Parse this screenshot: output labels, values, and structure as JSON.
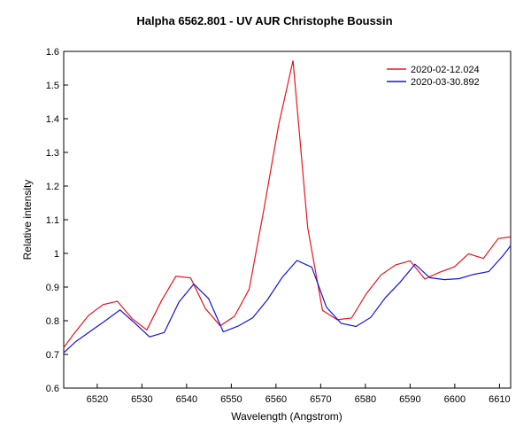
{
  "chart_data": {
    "type": "line",
    "title": "Halpha 6562.801 - UV AUR   Christophe Boussin",
    "xlabel": "Wavelength (Angstrom)",
    "ylabel": "Relative intensity",
    "xlim": [
      6512.5,
      6612.5
    ],
    "ylim": [
      0.6,
      1.6
    ],
    "xticks": [
      "6520",
      "6530",
      "6540",
      "6550",
      "6560",
      "6570",
      "6580",
      "6590",
      "6600",
      "6610"
    ],
    "yticks": [
      "0.6",
      "0.7",
      "0.8",
      "0.9",
      "1",
      "1.1",
      "1.2",
      "1.3",
      "1.4",
      "1.5",
      "1.6"
    ],
    "legend_position": "top-right",
    "grid": false,
    "series": [
      {
        "name": "2020-02-12.024",
        "color": "#e8141c",
        "x": [
          6512.5,
          6514.7,
          6518.0,
          6521.3,
          6524.5,
          6527.8,
          6531.1,
          6534.4,
          6537.6,
          6540.9,
          6544.2,
          6547.5,
          6550.7,
          6554.0,
          6557.3,
          6560.6,
          6563.8,
          6567.1,
          6570.4,
          6573.7,
          6576.9,
          6580.2,
          6583.5,
          6586.8,
          6590.0,
          6593.3,
          6596.6,
          6599.9,
          6603.1,
          6606.4,
          6609.7,
          6612.5
        ],
        "y": [
          0.72,
          0.76,
          0.815,
          0.848,
          0.858,
          0.806,
          0.773,
          0.86,
          0.932,
          0.927,
          0.836,
          0.785,
          0.813,
          0.894,
          1.131,
          1.382,
          1.573,
          1.076,
          0.831,
          0.803,
          0.808,
          0.88,
          0.936,
          0.966,
          0.978,
          0.924,
          0.944,
          0.96,
          0.999,
          0.985,
          1.044,
          1.049
        ]
      },
      {
        "name": "2020-03-30.892",
        "color": "#1414e0",
        "x": [
          6512.5,
          6515.2,
          6518.5,
          6521.8,
          6525.1,
          6528.4,
          6531.7,
          6535.0,
          6538.3,
          6541.6,
          6544.9,
          6548.2,
          6551.5,
          6554.8,
          6558.1,
          6561.4,
          6564.7,
          6568.0,
          6571.3,
          6574.6,
          6577.9,
          6581.2,
          6584.5,
          6587.8,
          6591.1,
          6594.4,
          6597.7,
          6601.0,
          6604.3,
          6607.6,
          6610.9,
          6612.5
        ],
        "y": [
          0.705,
          0.738,
          0.769,
          0.8,
          0.832,
          0.793,
          0.752,
          0.765,
          0.856,
          0.909,
          0.866,
          0.767,
          0.784,
          0.809,
          0.863,
          0.929,
          0.979,
          0.959,
          0.84,
          0.792,
          0.783,
          0.81,
          0.869,
          0.915,
          0.968,
          0.928,
          0.922,
          0.925,
          0.938,
          0.946,
          0.995,
          1.023
        ]
      }
    ]
  }
}
